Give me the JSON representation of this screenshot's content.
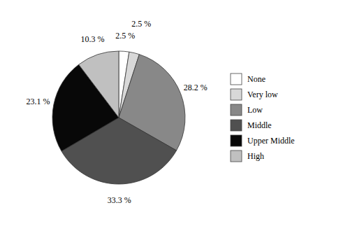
{
  "chart_data": {
    "type": "pie",
    "categories": [
      "None",
      "Very low",
      "Low",
      "Middle",
      "Upper Middle",
      "High"
    ],
    "values": [
      2.5,
      2.5,
      28.2,
      33.3,
      23.1,
      10.3
    ],
    "value_labels": [
      "2.5 %",
      "2.5 %",
      "28.2 %",
      "33.3 %",
      "23.1 %",
      "10.3 %"
    ],
    "colors": [
      "#ffffff",
      "#d8d8d8",
      "#888888",
      "#505050",
      "#080808",
      "#c0c0c0"
    ],
    "data_labels": true,
    "legend": "right"
  }
}
